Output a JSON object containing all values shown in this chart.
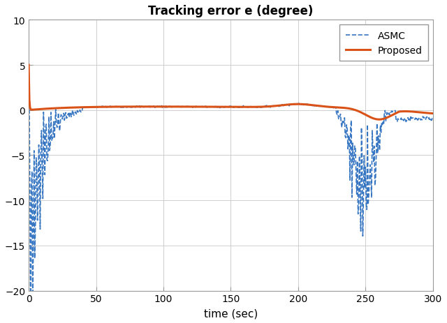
{
  "title": "Tracking error e (degree)",
  "xlabel": "time (sec)",
  "ylabel": "",
  "xlim": [
    0,
    300
  ],
  "ylim": [
    -20,
    10
  ],
  "xticks": [
    0,
    50,
    100,
    150,
    200,
    250,
    300
  ],
  "yticks": [
    -20,
    -15,
    -10,
    -5,
    0,
    5,
    10
  ],
  "legend": [
    "ASMC",
    "Proposed"
  ],
  "asmc_color": "#3575c1",
  "proposed_color": "#d95319",
  "background_color": "#ffffff"
}
